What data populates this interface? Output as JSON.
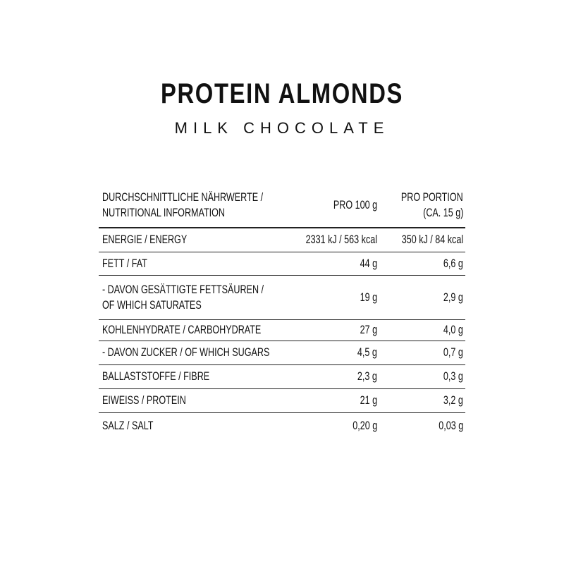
{
  "header": {
    "title": "PROTEIN ALMONDS",
    "subtitle": "MILK CHOCOLATE"
  },
  "table": {
    "columns": [
      [
        "DURCHSCHNITTLICHE NÄHRWERTE /",
        "NUTRITIONAL INFORMATION"
      ],
      [
        "PRO 100 g"
      ],
      [
        "PRO PORTION",
        "(CA. 15 g)"
      ]
    ],
    "rows": [
      [
        [
          "ENERGIE / ENERGY"
        ],
        [
          "2331 kJ / 563 kcal"
        ],
        [
          "350 kJ / 84 kcal"
        ]
      ],
      [
        [
          "FETT / FAT"
        ],
        [
          "44 g"
        ],
        [
          "6,6 g"
        ]
      ],
      [
        [
          "- DAVON GESÄTTIGTE FETTSÄUREN /",
          "OF WHICH SATURATES"
        ],
        [
          "19 g"
        ],
        [
          "2,9 g"
        ]
      ],
      [
        [
          "KOHLENHYDRATE / CARBOHYDRATE"
        ],
        [
          "27 g"
        ],
        [
          "4,0 g"
        ]
      ],
      [
        [
          "- DAVON ZUCKER / OF WHICH SUGARS"
        ],
        [
          "4,5 g"
        ],
        [
          "0,7 g"
        ]
      ],
      [
        [
          "BALLASTSTOFFE / FIBRE"
        ],
        [
          "2,3 g"
        ],
        [
          "0,3 g"
        ]
      ],
      [
        [
          "EIWEISS / PROTEIN"
        ],
        [
          "21 g"
        ],
        [
          "3,2 g"
        ]
      ],
      [
        [
          "SALZ / SALT"
        ],
        [
          "0,20 g"
        ],
        [
          "0,03 g"
        ]
      ]
    ]
  }
}
